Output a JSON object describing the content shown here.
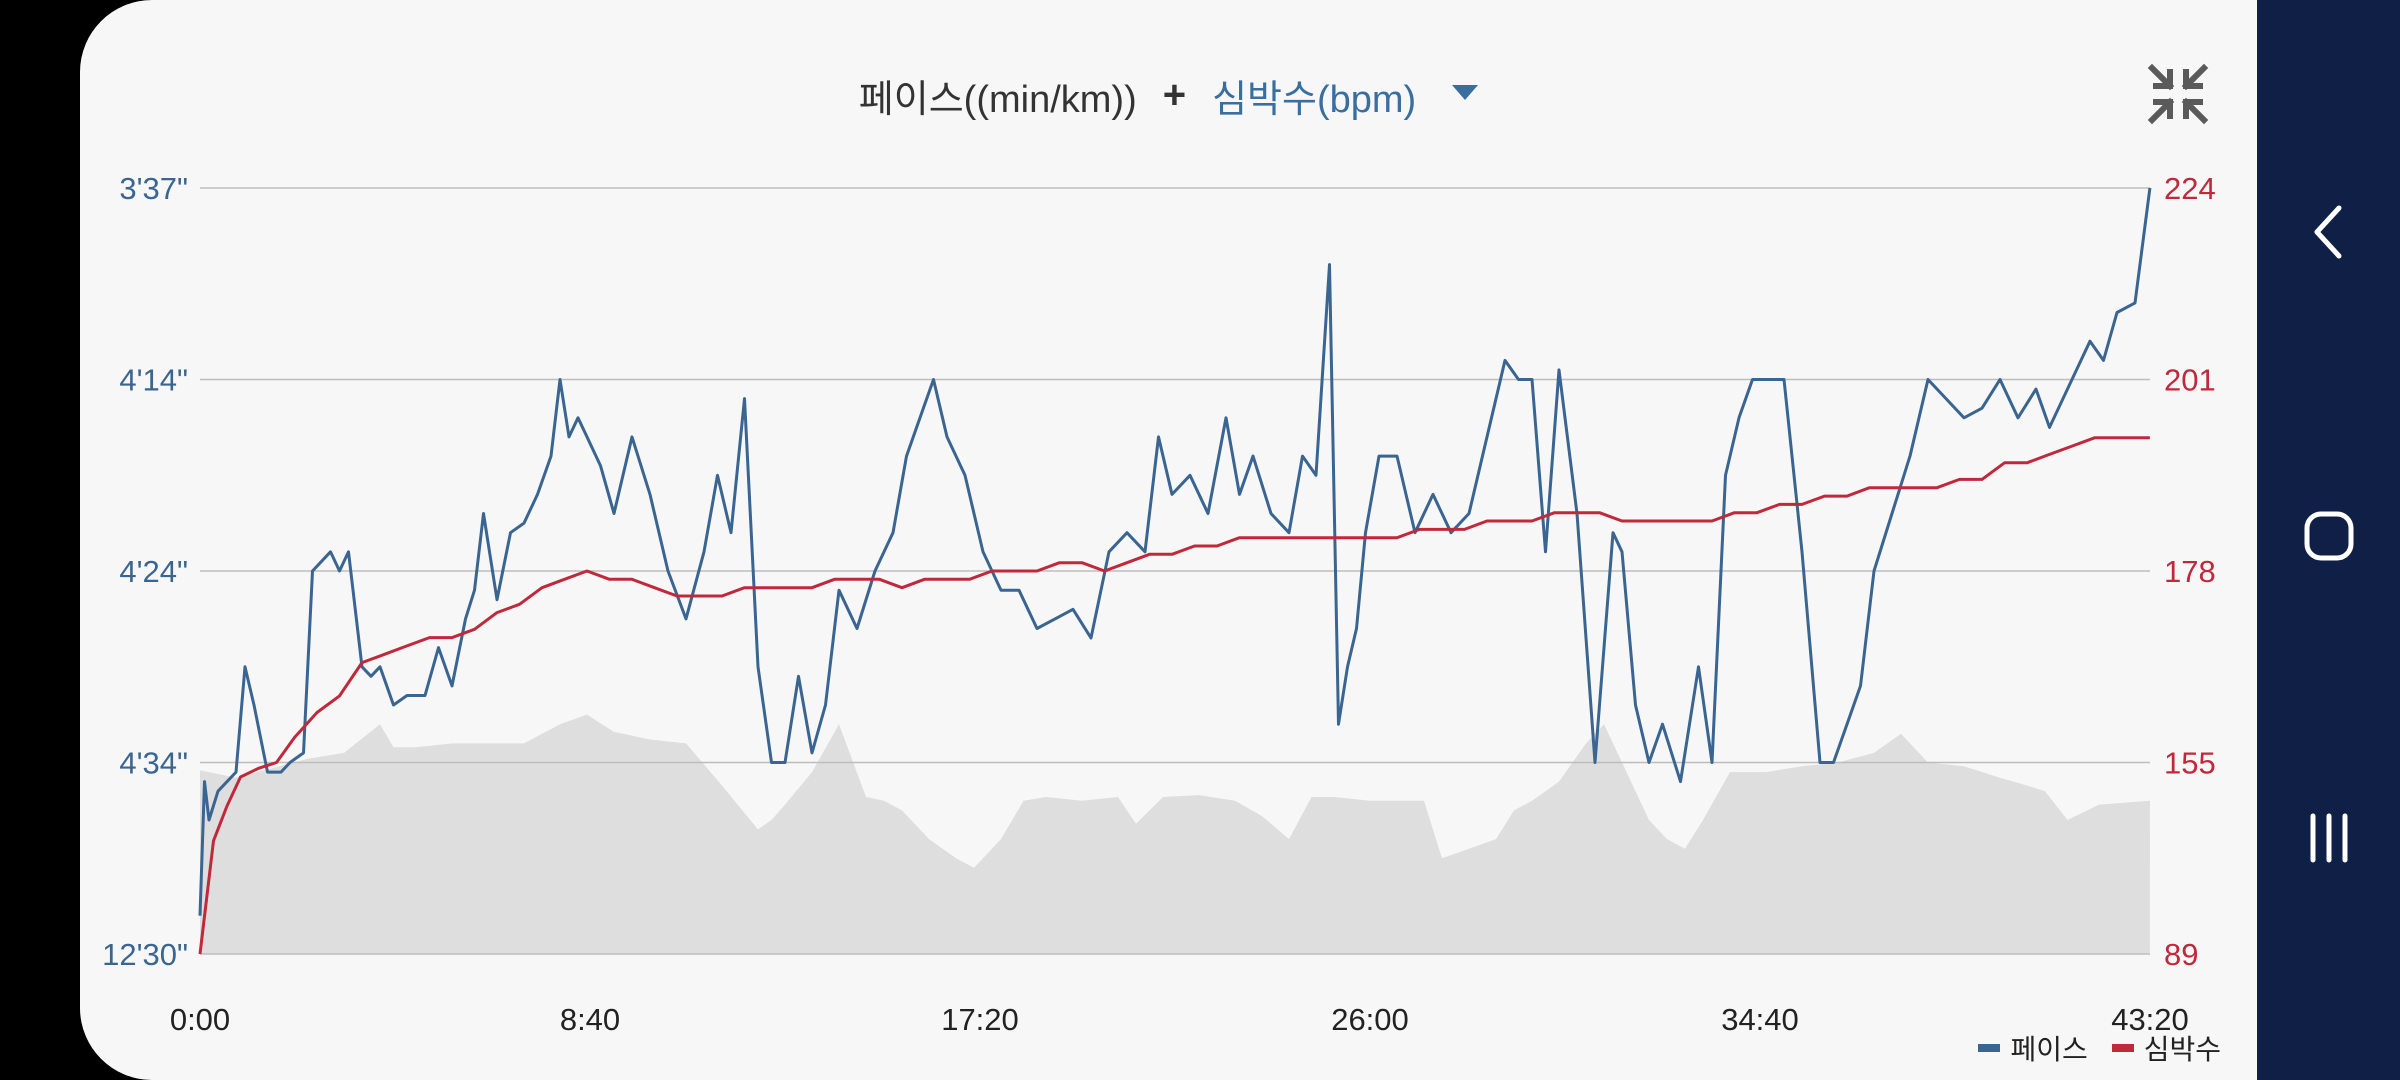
{
  "header": {
    "metric_primary": "페이스((min/km))",
    "plus": "+",
    "metric_secondary": "심박수(bpm)"
  },
  "colors": {
    "pace": "#3a6591",
    "heart_rate": "#c0283c",
    "elevation": "#dedede",
    "grid": "#bdbdbd"
  },
  "icons": {
    "collapse": "collapse-arrows-icon",
    "dropdown": "triangle-down-icon",
    "back": "chevron-left-icon",
    "home": "rounded-square-icon",
    "recents": "three-bars-icon"
  },
  "chart_data": {
    "type": "line",
    "x_tick_labels": [
      "0:00",
      "8:40",
      "17:20",
      "26:00",
      "34:40",
      "43:20"
    ],
    "x_range_min": [
      0,
      43.333
    ],
    "left_axis": {
      "tick_labels": [
        "3'37\"",
        "4'14\"",
        "4'24\"",
        "4'34\"",
        "12'30\""
      ]
    },
    "right_axis": {
      "tick_labels": [
        "224",
        "201",
        "178",
        "155",
        "89"
      ],
      "ylim": [
        89,
        224
      ]
    },
    "grid": true,
    "legend": {
      "position": "bottom-right",
      "entries": [
        "페이스",
        "심박수"
      ]
    },
    "series": [
      {
        "name": "페이스",
        "unit": "axis level (0 = 12'30\", 4 = 3'37\")",
        "x_min": [
          0,
          0.1,
          0.2,
          0.4,
          0.8,
          1.0,
          1.2,
          1.5,
          1.8,
          2.0,
          2.3,
          2.5,
          2.9,
          3.1,
          3.3,
          3.6,
          3.8,
          4.0,
          4.3,
          4.6,
          4.8,
          5.0,
          5.3,
          5.6,
          5.9,
          6.1,
          6.3,
          6.6,
          6.9,
          7.2,
          7.5,
          7.8,
          8.0,
          8.2,
          8.4,
          8.6,
          8.9,
          9.2,
          9.6,
          10.0,
          10.4,
          10.8,
          11.2,
          11.5,
          11.8,
          12.1,
          12.4,
          12.7,
          13.0,
          13.3,
          13.6,
          13.9,
          14.2,
          14.6,
          15.0,
          15.4,
          15.7,
          16.0,
          16.3,
          16.6,
          17.0,
          17.4,
          17.8,
          18.2,
          18.6,
          19.0,
          19.4,
          19.8,
          20.2,
          20.6,
          21.0,
          21.3,
          21.6,
          22.0,
          22.4,
          22.8,
          23.1,
          23.4,
          23.8,
          24.2,
          24.5,
          24.8,
          25.1,
          25.3,
          25.5,
          25.7,
          25.9,
          26.2,
          26.6,
          27.0,
          27.4,
          27.8,
          28.2,
          28.6,
          29.0,
          29.3,
          29.6,
          29.9,
          30.2,
          30.6,
          31.0,
          31.4,
          31.6,
          31.9,
          32.2,
          32.5,
          32.9,
          33.3,
          33.6,
          33.9,
          34.2,
          34.5,
          34.8,
          35.2,
          35.6,
          36.0,
          36.3,
          36.6,
          36.9,
          37.2,
          37.6,
          38.0,
          38.4,
          38.8,
          39.2,
          39.6,
          40.0,
          40.4,
          40.8,
          41.1,
          41.4,
          41.7,
          42.0,
          42.3,
          42.6,
          43.0,
          43.33
        ],
        "values": [
          0.2,
          0.9,
          0.7,
          0.85,
          0.95,
          1.5,
          1.3,
          0.95,
          0.95,
          1.0,
          1.05,
          2.0,
          2.1,
          2.0,
          2.1,
          1.5,
          1.45,
          1.5,
          1.3,
          1.35,
          1.35,
          1.35,
          1.6,
          1.4,
          1.75,
          1.9,
          2.3,
          1.85,
          2.2,
          2.25,
          2.4,
          2.6,
          3.0,
          2.7,
          2.8,
          2.7,
          2.55,
          2.3,
          2.7,
          2.4,
          2.0,
          1.75,
          2.1,
          2.5,
          2.2,
          2.9,
          1.5,
          1.0,
          1.0,
          1.45,
          1.05,
          1.3,
          1.9,
          1.7,
          2.0,
          2.2,
          2.6,
          2.8,
          3.0,
          2.7,
          2.5,
          2.1,
          1.9,
          1.9,
          1.7,
          1.75,
          1.8,
          1.65,
          2.1,
          2.2,
          2.1,
          2.7,
          2.4,
          2.5,
          2.3,
          2.8,
          2.4,
          2.6,
          2.3,
          2.2,
          2.6,
          2.5,
          3.6,
          1.2,
          1.5,
          1.7,
          2.2,
          2.6,
          2.6,
          2.2,
          2.4,
          2.2,
          2.3,
          2.7,
          3.1,
          3.0,
          3.0,
          2.1,
          3.05,
          2.3,
          1.0,
          2.2,
          2.1,
          1.3,
          1.0,
          1.2,
          0.9,
          1.5,
          1.0,
          2.5,
          2.8,
          3.0,
          3.0,
          3.0,
          2.1,
          1.0,
          1.0,
          1.2,
          1.4,
          2.0,
          2.3,
          2.6,
          3.0,
          2.9,
          2.8,
          2.85,
          3.0,
          2.8,
          2.95,
          2.75,
          2.9,
          3.05,
          3.2,
          3.1,
          3.35,
          3.4,
          4.0,
          3.7,
          3.65
        ]
      },
      {
        "name": "심박수",
        "unit": "bpm",
        "x_min": [
          0,
          0.3,
          0.6,
          0.9,
          1.3,
          1.7,
          2.1,
          2.6,
          3.1,
          3.6,
          4.1,
          4.6,
          5.1,
          5.6,
          6.1,
          6.6,
          7.1,
          7.6,
          8.1,
          8.6,
          9.1,
          9.6,
          10.1,
          10.6,
          11.1,
          11.6,
          12.1,
          12.6,
          13.1,
          13.6,
          14.1,
          14.6,
          15.1,
          15.6,
          16.1,
          16.6,
          17.1,
          17.6,
          18.1,
          18.6,
          19.1,
          19.6,
          20.1,
          20.6,
          21.1,
          21.6,
          22.1,
          22.6,
          23.1,
          23.6,
          24.1,
          24.6,
          25.1,
          25.6,
          26.1,
          26.6,
          27.1,
          27.6,
          28.1,
          28.6,
          29.1,
          29.6,
          30.1,
          30.6,
          31.1,
          31.6,
          32.1,
          32.6,
          33.1,
          33.6,
          34.1,
          34.6,
          35.1,
          35.6,
          36.1,
          36.6,
          37.1,
          37.6,
          38.1,
          38.6,
          39.1,
          39.6,
          40.1,
          40.6,
          41.1,
          41.6,
          42.1,
          42.6,
          43.33
        ],
        "values": [
          89,
          128,
          140,
          150,
          153,
          155,
          158,
          161,
          163,
          167,
          168,
          169,
          170,
          170,
          171,
          173,
          174,
          176,
          177,
          178,
          177,
          177,
          176,
          175,
          175,
          175,
          176,
          176,
          176,
          176,
          177,
          177,
          177,
          176,
          177,
          177,
          177,
          178,
          178,
          178,
          179,
          179,
          178,
          179,
          180,
          180,
          181,
          181,
          182,
          182,
          182,
          182,
          182,
          182,
          182,
          182,
          183,
          183,
          183,
          184,
          184,
          184,
          185,
          185,
          185,
          184,
          184,
          184,
          184,
          184,
          185,
          185,
          186,
          186,
          187,
          187,
          188,
          188,
          188,
          188,
          189,
          189,
          191,
          191,
          192,
          193,
          194,
          194,
          194
        ]
      }
    ],
    "background_area": {
      "name": "elevation",
      "unit": "axis level (0 = baseline)",
      "x_min": [
        0,
        0.8,
        1.6,
        2.4,
        3.2,
        4.0,
        4.3,
        4.8,
        5.6,
        6.4,
        7.2,
        8.0,
        8.6,
        9.2,
        10.0,
        10.8,
        11.6,
        12.4,
        12.7,
        13.0,
        13.6,
        14.2,
        14.8,
        15.2,
        15.6,
        16.2,
        16.8,
        17.2,
        17.8,
        18.3,
        18.8,
        19.6,
        20.4,
        20.8,
        21.4,
        22.2,
        23.0,
        23.6,
        24.2,
        24.7,
        25.2,
        26.0,
        26.6,
        27.2,
        27.6,
        28.2,
        28.8,
        29.2,
        29.6,
        30.2,
        30.8,
        31.2,
        31.6,
        32.2,
        32.6,
        33.0,
        33.4,
        34.0,
        34.8,
        35.6,
        36.4,
        37.2,
        37.8,
        38.4,
        39.2,
        40.0,
        40.6,
        41.0,
        41.5,
        42.2,
        43.33
      ],
      "values": [
        0.96,
        0.92,
        0.97,
        1.02,
        1.05,
        1.2,
        1.08,
        1.08,
        1.1,
        1.1,
        1.1,
        1.2,
        1.25,
        1.16,
        1.12,
        1.1,
        0.88,
        0.65,
        0.7,
        0.78,
        0.95,
        1.2,
        0.82,
        0.8,
        0.75,
        0.6,
        0.5,
        0.45,
        0.6,
        0.8,
        0.82,
        0.8,
        0.82,
        0.68,
        0.82,
        0.83,
        0.8,
        0.72,
        0.6,
        0.82,
        0.82,
        0.8,
        0.8,
        0.8,
        0.5,
        0.55,
        0.6,
        0.75,
        0.8,
        0.9,
        1.1,
        1.2,
        1.0,
        0.7,
        0.6,
        0.55,
        0.7,
        0.95,
        0.95,
        0.98,
        1.0,
        1.05,
        1.15,
        1.0,
        0.98,
        0.92,
        0.88,
        0.85,
        0.7,
        0.78,
        0.8
      ]
    }
  }
}
